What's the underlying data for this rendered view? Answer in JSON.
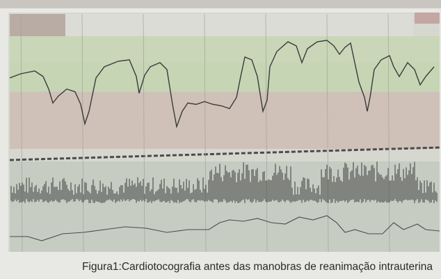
{
  "figure": {
    "caption": "Figura1:Cardiotocografia antes das manobras de reanimação intrauterina"
  }
}
